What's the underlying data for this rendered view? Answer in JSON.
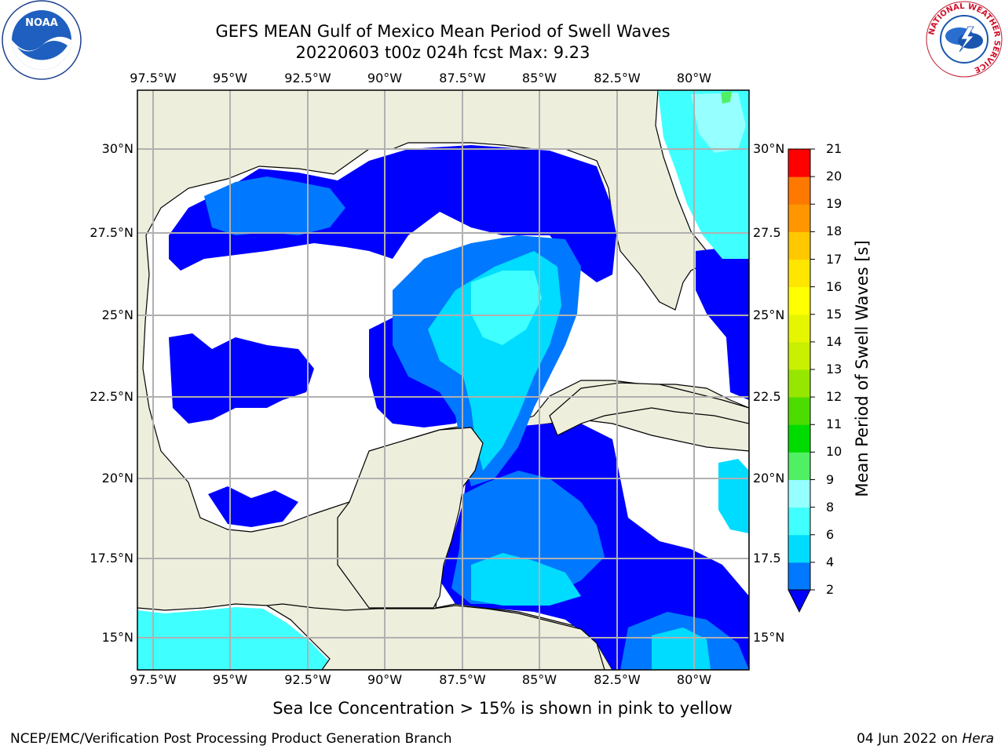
{
  "header": {
    "title_line1": "GEFS MEAN Gulf of Mexico Mean Period of Swell Waves",
    "title_line2": "20220603 t00z 024h fcst   Max: 9.23"
  },
  "logos": {
    "noaa_text": "NOAA",
    "nws_ring_text": "NATIONAL WEATHER SERVICE"
  },
  "map": {
    "lon_labels": [
      "97.5°W",
      "95°W",
      "92.5°W",
      "90°W",
      "87.5°W",
      "85°W",
      "82.5°W",
      "80°W"
    ],
    "lat_labels_left": [
      "30°N",
      "27.5°N",
      "25°N",
      "22.5°N",
      "20°N",
      "17.5°N",
      "15°N"
    ],
    "lat_labels_right": [
      "30°N",
      "27.5",
      "25°N",
      "22.5",
      "20°N",
      "17.5",
      "15°N"
    ],
    "colors": {
      "land": "#eeeedd",
      "ocean_missing": "#ffffff",
      "grid": "#b0b0b0",
      "coast": "#000000"
    }
  },
  "colorbar": {
    "label": "Mean Period of Swell Waves [s]",
    "ticks": [
      "2",
      "4",
      "6",
      "8",
      "9",
      "10",
      "11",
      "12",
      "13",
      "14",
      "15",
      "16",
      "17",
      "18",
      "19",
      "20",
      "21"
    ],
    "colors": [
      "#0078ff",
      "#00dcff",
      "#40ffff",
      "#96ffff",
      "#50f064",
      "#00dc00",
      "#4cdc00",
      "#96e600",
      "#c8f000",
      "#e6f500",
      "#ffff00",
      "#ffe600",
      "#ffc800",
      "#ff9600",
      "#ff7800",
      "#ff5000",
      "#ff0000"
    ],
    "under_color": "#0000ff"
  },
  "footer": {
    "note": "Sea Ice Concentration > 15% is shown in pink to yellow",
    "credit": "NCEP/EMC/Verification Post Processing Product Generation Branch",
    "date": "04 Jun 2022 on",
    "machine": "Hera"
  }
}
